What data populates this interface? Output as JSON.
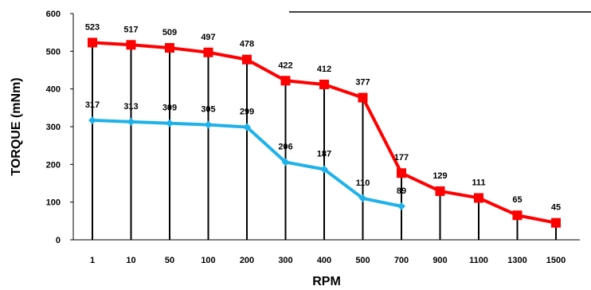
{
  "chart_data": {
    "type": "line",
    "xlabel": "RPM",
    "ylabel": "TORQUE (mNm)",
    "categories": [
      "1",
      "10",
      "50",
      "100",
      "200",
      "300",
      "400",
      "500",
      "700",
      "900",
      "1100",
      "1300",
      "1500"
    ],
    "ylim": [
      0,
      600
    ],
    "yticks": [
      0,
      100,
      200,
      300,
      400,
      500,
      600
    ],
    "grid": false,
    "legend": "none",
    "series": [
      {
        "color": "#ff0000",
        "marker": "square",
        "values": [
          523,
          517,
          509,
          497,
          478,
          422,
          412,
          377,
          177,
          129,
          111,
          65,
          45
        ]
      },
      {
        "color": "#1fb2ea",
        "marker": "diamond",
        "values": [
          317,
          313,
          309,
          305,
          299,
          206,
          187,
          110,
          89,
          null,
          null,
          null,
          null
        ]
      }
    ]
  }
}
